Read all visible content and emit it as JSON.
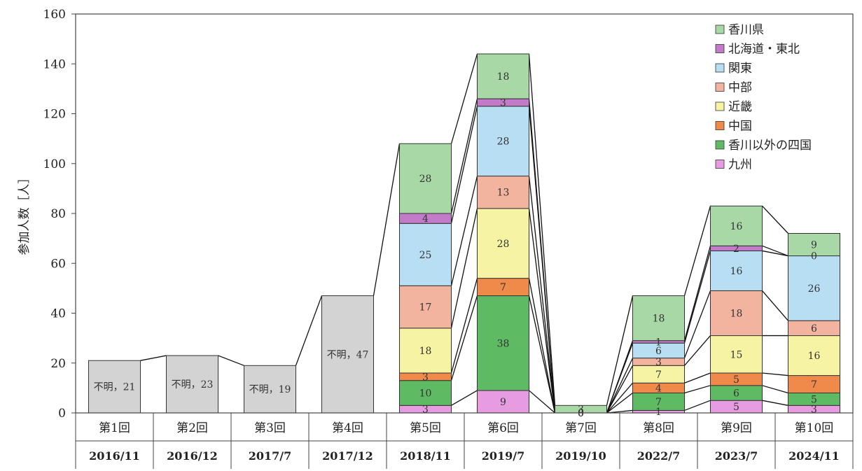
{
  "chart_data": {
    "type": "bar",
    "stacked": true,
    "ylabel": "参加人数［人］",
    "ylim": [
      0,
      160
    ],
    "yticks": [
      0,
      20,
      40,
      60,
      80,
      100,
      120,
      140,
      160
    ],
    "legend_position": "top-right",
    "categories": [
      "第1回",
      "第2回",
      "第3回",
      "第4回",
      "第5回",
      "第6回",
      "第7回",
      "第8回",
      "第9回",
      "第10回"
    ],
    "dates": [
      "2016/11",
      "2016/12",
      "2017/7",
      "2017/12",
      "2018/11",
      "2019/7",
      "2019/10",
      "2022/7",
      "2023/7",
      "2024/11"
    ],
    "unknown": {
      "label_prefix": "不明",
      "color": "#d3d3d3",
      "values": [
        21,
        23,
        19,
        47,
        null,
        null,
        null,
        null,
        null,
        null
      ],
      "labels": [
        "不明，21",
        "不明，23",
        "不明，19",
        "不明，47"
      ]
    },
    "series": [
      {
        "name": "九州",
        "color": "#e79be0",
        "values": [
          null,
          null,
          null,
          null,
          3,
          9,
          0,
          1,
          5,
          3
        ]
      },
      {
        "name": "香川以外の四国",
        "color": "#5fba64",
        "values": [
          null,
          null,
          null,
          null,
          10,
          38,
          0,
          7,
          6,
          5
        ]
      },
      {
        "name": "中国",
        "color": "#f08a4b",
        "values": [
          null,
          null,
          null,
          null,
          3,
          7,
          0,
          4,
          5,
          7
        ]
      },
      {
        "name": "近畿",
        "color": "#f6f3a3",
        "values": [
          null,
          null,
          null,
          null,
          18,
          28,
          0,
          7,
          15,
          16
        ]
      },
      {
        "name": "中部",
        "color": "#f3b49f",
        "values": [
          null,
          null,
          null,
          null,
          17,
          13,
          0,
          3,
          18,
          6
        ]
      },
      {
        "name": "関東",
        "color": "#b7def2",
        "values": [
          null,
          null,
          null,
          null,
          25,
          28,
          0,
          6,
          16,
          26
        ]
      },
      {
        "name": "北海道・東北",
        "color": "#c27bc8",
        "values": [
          null,
          null,
          null,
          null,
          4,
          3,
          0,
          1,
          2,
          0
        ]
      },
      {
        "name": "香川県",
        "color": "#a8d8a6",
        "values": [
          null,
          null,
          null,
          null,
          28,
          18,
          3,
          18,
          16,
          9
        ]
      }
    ],
    "legend_order": [
      "香川県",
      "北海道・東北",
      "関東",
      "中部",
      "近畿",
      "中国",
      "香川以外の四国",
      "九州"
    ]
  }
}
